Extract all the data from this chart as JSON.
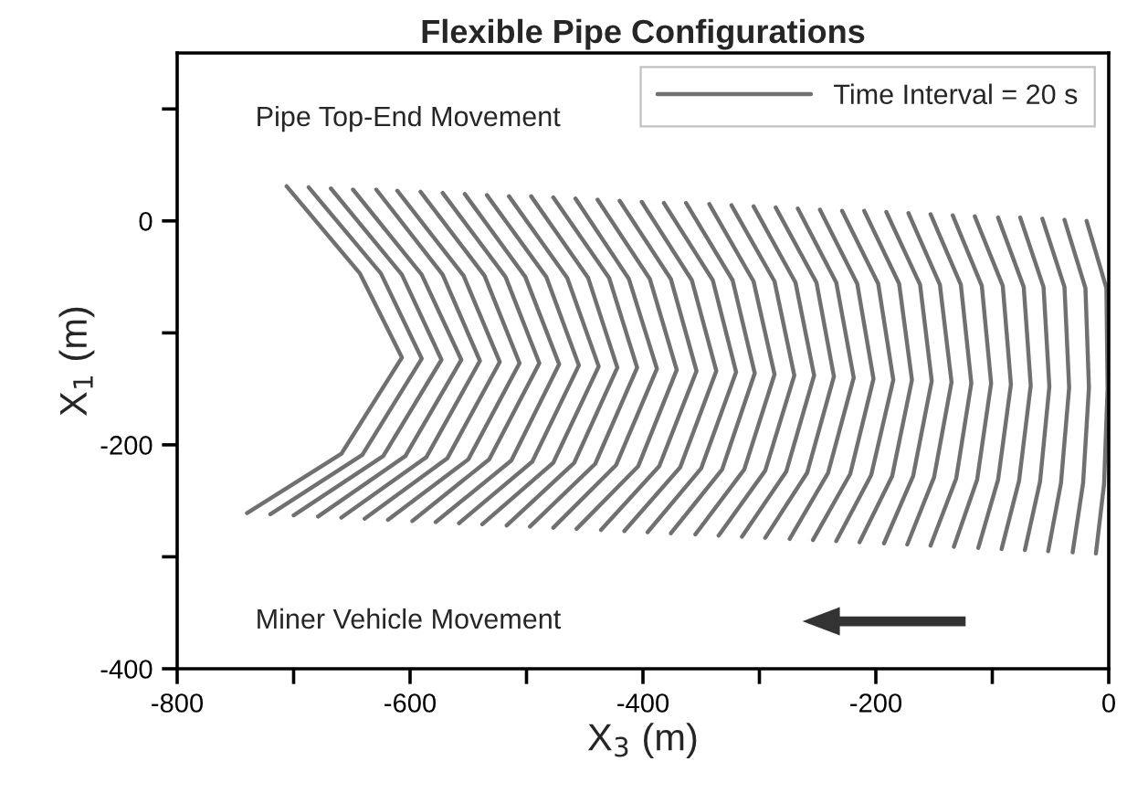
{
  "chart_data": {
    "type": "line",
    "title": "Flexible Pipe Configurations",
    "xlabel": "X$_{3}$ (m)",
    "ylabel": "X$_{1}$ (m)",
    "annotations": [
      "Pipe Top-End Movement",
      "Miner Vehicle Movement"
    ],
    "xlim": [
      -800,
      0
    ],
    "xticks": [
      -800,
      {
        "value": -700,
        "label": null
      },
      -600,
      {
        "value": -500,
        "label": null
      },
      -400,
      {
        "value": -300,
        "label": null
      },
      -200,
      {
        "value": -100,
        "label": null
      },
      0
    ],
    "ylim": [
      -400,
      150
    ],
    "yticks": [
      -400,
      {
        "value": -300,
        "label": null
      },
      -200,
      {
        "value": -100,
        "label": null
      },
      0,
      {
        "value": 100,
        "label": null
      }
    ],
    "grid": false,
    "legend": "top right",
    "series": [
      {
        "name": "Time Interval = 20 s",
        "color": "#707070",
        "x": [
          -706,
          -643,
          -607,
          -659,
          -740
        ],
        "values": [
          31,
          -47,
          -122,
          -208,
          -261
        ]
      },
      {
        "color": "#707070",
        "x": [
          -687,
          -625,
          -590,
          -641,
          -720
        ],
        "values": [
          30,
          -47,
          -123,
          -209,
          -262
        ]
      },
      {
        "color": "#707070",
        "x": [
          -668,
          -607,
          -573,
          -623,
          -700
        ],
        "values": [
          29,
          -48,
          -124,
          -210,
          -263
        ]
      },
      {
        "color": "#707070",
        "x": [
          -649,
          -590,
          -556,
          -604,
          -679
        ],
        "values": [
          28,
          -48,
          -124,
          -210,
          -264
        ]
      },
      {
        "color": "#707070",
        "x": [
          -629,
          -572,
          -540,
          -586,
          -659
        ],
        "values": [
          28,
          -48,
          -125,
          -211,
          -265
        ]
      },
      {
        "color": "#707070",
        "x": [
          -611,
          -554,
          -523,
          -568,
          -639
        ],
        "values": [
          27,
          -49,
          -126,
          -212,
          -266
        ]
      },
      {
        "color": "#707070",
        "x": [
          -591,
          -536,
          -506,
          -550,
          -619
        ],
        "values": [
          26,
          -49,
          -127,
          -213,
          -267
        ]
      },
      {
        "color": "#707070",
        "x": [
          -572,
          -518,
          -489,
          -532,
          -598
        ],
        "values": [
          25,
          -50,
          -127,
          -213,
          -268
        ]
      },
      {
        "color": "#707070",
        "x": [
          -553,
          -501,
          -472,
          -513,
          -578
        ],
        "values": [
          24,
          -50,
          -128,
          -214,
          -269
        ]
      },
      {
        "color": "#707070",
        "x": [
          -534,
          -483,
          -455,
          -495,
          -558
        ],
        "values": [
          23,
          -50,
          -129,
          -215,
          -270
        ]
      },
      {
        "color": "#707070",
        "x": [
          -515,
          -465,
          -438,
          -477,
          -538
        ],
        "values": [
          22,
          -51,
          -130,
          -216,
          -271
        ]
      },
      {
        "color": "#707070",
        "x": [
          -496,
          -447,
          -422,
          -459,
          -517
        ],
        "values": [
          22,
          -51,
          -131,
          -216,
          -272
        ]
      },
      {
        "color": "#707070",
        "x": [
          -477,
          -429,
          -405,
          -441,
          -497
        ],
        "values": [
          21,
          -51,
          -131,
          -217,
          -273
        ]
      },
      {
        "color": "#707070",
        "x": [
          -458,
          -412,
          -388,
          -423,
          -477
        ],
        "values": [
          20,
          -52,
          -132,
          -218,
          -274
        ]
      },
      {
        "color": "#707070",
        "x": [
          -439,
          -394,
          -371,
          -404,
          -457
        ],
        "values": [
          19,
          -52,
          -133,
          -219,
          -275
        ]
      },
      {
        "color": "#707070",
        "x": [
          -420,
          -376,
          -354,
          -386,
          -436
        ],
        "values": [
          18,
          -52,
          -134,
          -219,
          -276
        ]
      },
      {
        "color": "#707070",
        "x": [
          -401,
          -358,
          -337,
          -368,
          -416
        ],
        "values": [
          17,
          -53,
          -134,
          -220,
          -277
        ]
      },
      {
        "color": "#707070",
        "x": [
          -382,
          -340,
          -320,
          -350,
          -396
        ],
        "values": [
          16,
          -53,
          -135,
          -221,
          -278
        ]
      },
      {
        "color": "#707070",
        "x": [
          -363,
          -323,
          -304,
          -332,
          -376
        ],
        "values": [
          16,
          -53,
          -136,
          -222,
          -279
        ]
      },
      {
        "color": "#707070",
        "x": [
          -343,
          -305,
          -287,
          -313,
          -355
        ],
        "values": [
          15,
          -54,
          -137,
          -222,
          -280
        ]
      },
      {
        "color": "#707070",
        "x": [
          -324,
          -287,
          -270,
          -295,
          -335
        ],
        "values": [
          14,
          -54,
          -138,
          -223,
          -281
        ]
      },
      {
        "color": "#707070",
        "x": [
          -305,
          -269,
          -253,
          -277,
          -315
        ],
        "values": [
          13,
          -55,
          -138,
          -224,
          -282
        ]
      },
      {
        "color": "#707070",
        "x": [
          -286,
          -251,
          -236,
          -259,
          -295
        ],
        "values": [
          12,
          -55,
          -139,
          -225,
          -283
        ]
      },
      {
        "color": "#707070",
        "x": [
          -267,
          -234,
          -219,
          -241,
          -274
        ],
        "values": [
          11,
          -55,
          -140,
          -225,
          -284
        ]
      },
      {
        "color": "#707070",
        "x": [
          -248,
          -216,
          -202,
          -222,
          -254
        ],
        "values": [
          10,
          -56,
          -141,
          -226,
          -285
        ]
      },
      {
        "color": "#707070",
        "x": [
          -229,
          -198,
          -185,
          -204,
          -234
        ],
        "values": [
          9,
          -56,
          -142,
          -227,
          -286
        ]
      },
      {
        "color": "#707070",
        "x": [
          -210,
          -180,
          -169,
          -186,
          -214
        ],
        "values": [
          9,
          -56,
          -142,
          -228,
          -287
        ]
      },
      {
        "color": "#707070",
        "x": [
          -191,
          -162,
          -152,
          -168,
          -193
        ],
        "values": [
          8,
          -57,
          -143,
          -228,
          -288
        ]
      },
      {
        "color": "#707070",
        "x": [
          -172,
          -145,
          -135,
          -150,
          -173
        ],
        "values": [
          7,
          -57,
          -144,
          -229,
          -289
        ]
      },
      {
        "color": "#707070",
        "x": [
          -153,
          -127,
          -118,
          -131,
          -153
        ],
        "values": [
          6,
          -57,
          -145,
          -230,
          -290
        ]
      },
      {
        "color": "#707070",
        "x": [
          -134,
          -109,
          -101,
          -113,
          -133
        ],
        "values": [
          5,
          -58,
          -145,
          -231,
          -291
        ]
      },
      {
        "color": "#707070",
        "x": [
          -115,
          -91,
          -84,
          -95,
          -112
        ],
        "values": [
          4,
          -58,
          -146,
          -231,
          -292
        ]
      },
      {
        "color": "#707070",
        "x": [
          -95,
          -73,
          -67,
          -77,
          -92
        ],
        "values": [
          3,
          -59,
          -147,
          -232,
          -293
        ]
      },
      {
        "color": "#707070",
        "x": [
          -76,
          -56,
          -51,
          -59,
          -72
        ],
        "values": [
          3,
          -59,
          -148,
          -233,
          -294
        ]
      },
      {
        "color": "#707070",
        "x": [
          -57,
          -38,
          -34,
          -41,
          -52
        ],
        "values": [
          2,
          -59,
          -149,
          -234,
          -295
        ]
      },
      {
        "color": "#707070",
        "x": [
          -38,
          -20,
          -17,
          -22,
          -31
        ],
        "values": [
          1,
          -60,
          -149,
          -234,
          -296
        ]
      },
      {
        "color": "#707070",
        "x": [
          -19,
          -2,
          -1,
          -4,
          -11
        ],
        "values": [
          0,
          -60,
          -150,
          -235,
          -297
        ]
      }
    ]
  }
}
